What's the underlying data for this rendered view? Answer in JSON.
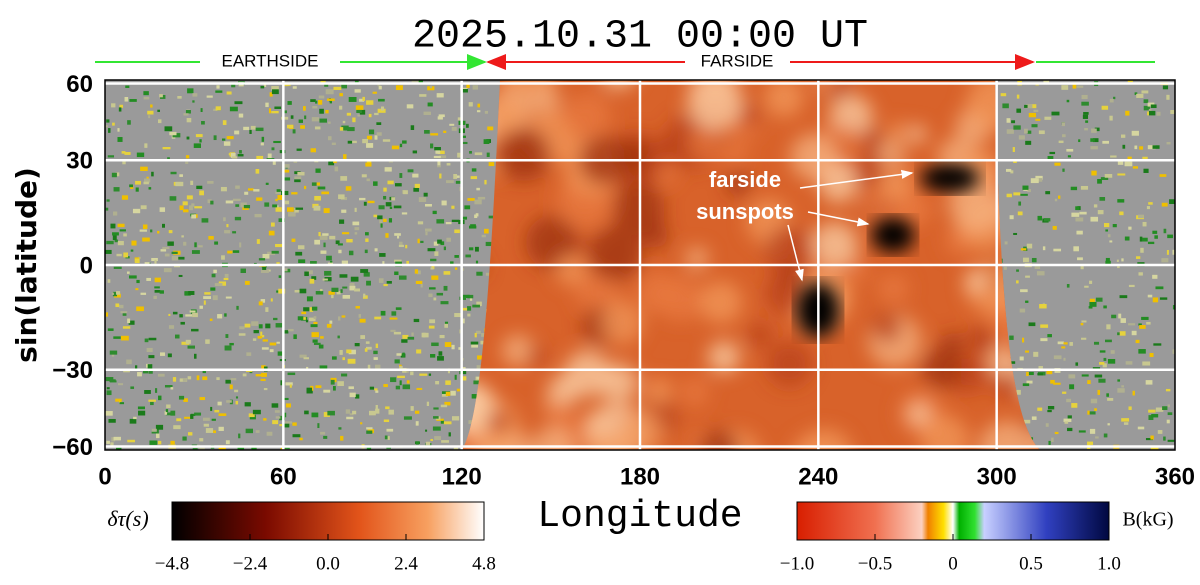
{
  "chart_data": {
    "type": "heatmap",
    "title": "2025.10.31  00:00 UT",
    "x_label": "Longitude",
    "y_label": "sin(latitude)",
    "xlim": [
      0,
      360
    ],
    "xticks": [
      0,
      60,
      120,
      180,
      240,
      300,
      360
    ],
    "ylim": [
      -62,
      62
    ],
    "yscale": "sine",
    "yticks": [
      {
        "value": -60,
        "label": "−60"
      },
      {
        "value": -30,
        "label": "−30"
      },
      0,
      30,
      60
    ],
    "grid": true,
    "regions": [
      {
        "name": "EARTHSIDE",
        "color": "#33e633"
      },
      {
        "name": "FARSIDE",
        "color": "#ee1a1a"
      }
    ],
    "annotations": [
      "farside",
      "sunspots"
    ],
    "colorbars": [
      {
        "label": "δτ(s)",
        "lim": [
          -4.8,
          4.8
        ],
        "ticks": [
          {
            "value": -4.8,
            "label": "−4.8"
          },
          {
            "value": -2.4,
            "label": "−2.4"
          },
          {
            "value": 0,
            "label": "0.0"
          },
          2.4,
          4.8
        ]
      },
      {
        "label": "B(kG)",
        "lim": [
          -1,
          1
        ],
        "ticks": [
          {
            "value": -1,
            "label": "−1.0"
          },
          {
            "value": -0.5,
            "label": "−0.5"
          },
          0,
          0.5,
          {
            "value": 1,
            "label": "1.0"
          }
        ]
      }
    ]
  }
}
